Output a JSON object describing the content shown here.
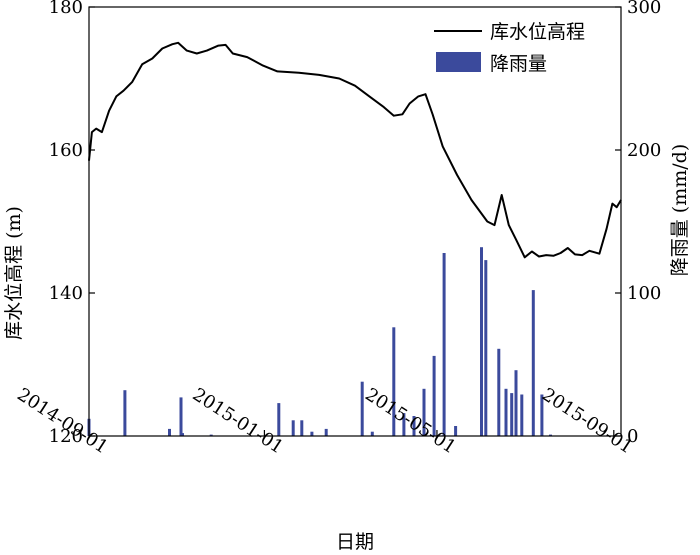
{
  "chart_data": {
    "type": "line+bar",
    "xlabel": "日期",
    "ylabel_left": "库水位高程 (m)",
    "ylabel_right": "降雨量 (mm/d)",
    "ylim_left": [
      120,
      180
    ],
    "ylim_right": [
      0,
      300
    ],
    "yticks_left": [
      "120",
      "140",
      "160",
      "180"
    ],
    "yticks_right": [
      "0",
      "100",
      "200",
      "300"
    ],
    "xlim": [
      "2014-09-01",
      "2015-09-06"
    ],
    "xticks": [
      "2014-09-01",
      "2015-01-01",
      "2015-05-01",
      "2015-09-01"
    ],
    "legend_position": "top-right",
    "series": [
      {
        "name": "库水位高程",
        "kind": "line",
        "color": "#000000",
        "points": [
          [
            "2014-09-01",
            158.5
          ],
          [
            "2014-09-03",
            162.5
          ],
          [
            "2014-09-06",
            163.0
          ],
          [
            "2014-09-10",
            162.5
          ],
          [
            "2014-09-15",
            165.5
          ],
          [
            "2014-09-20",
            167.5
          ],
          [
            "2014-09-25",
            168.3
          ],
          [
            "2014-10-01",
            169.5
          ],
          [
            "2014-10-08",
            172.0
          ],
          [
            "2014-10-15",
            172.8
          ],
          [
            "2014-10-22",
            174.2
          ],
          [
            "2014-10-29",
            174.8
          ],
          [
            "2014-11-02",
            175.0
          ],
          [
            "2014-11-08",
            173.9
          ],
          [
            "2014-11-15",
            173.5
          ],
          [
            "2014-11-22",
            173.9
          ],
          [
            "2014-11-30",
            174.6
          ],
          [
            "2014-12-05",
            174.7
          ],
          [
            "2014-12-10",
            173.5
          ],
          [
            "2014-12-20",
            173.0
          ],
          [
            "2014-12-31",
            171.8
          ],
          [
            "2015-01-10",
            171.0
          ],
          [
            "2015-01-25",
            170.8
          ],
          [
            "2015-02-08",
            170.5
          ],
          [
            "2015-02-22",
            170.0
          ],
          [
            "2015-03-05",
            169.0
          ],
          [
            "2015-03-15",
            167.5
          ],
          [
            "2015-03-25",
            166.0
          ],
          [
            "2015-04-01",
            164.8
          ],
          [
            "2015-04-07",
            165.0
          ],
          [
            "2015-04-12",
            166.5
          ],
          [
            "2015-04-18",
            167.5
          ],
          [
            "2015-04-23",
            167.8
          ],
          [
            "2015-04-28",
            165.0
          ],
          [
            "2015-05-05",
            160.5
          ],
          [
            "2015-05-15",
            156.5
          ],
          [
            "2015-05-25",
            153.0
          ],
          [
            "2015-06-05",
            150.0
          ],
          [
            "2015-06-10",
            149.5
          ],
          [
            "2015-06-15",
            153.7
          ],
          [
            "2015-06-20",
            149.5
          ],
          [
            "2015-06-25",
            147.5
          ],
          [
            "2015-07-01",
            145.0
          ],
          [
            "2015-07-06",
            145.8
          ],
          [
            "2015-07-11",
            145.1
          ],
          [
            "2015-07-16",
            145.3
          ],
          [
            "2015-07-21",
            145.2
          ],
          [
            "2015-07-26",
            145.6
          ],
          [
            "2015-07-31",
            146.3
          ],
          [
            "2015-08-05",
            145.4
          ],
          [
            "2015-08-10",
            145.3
          ],
          [
            "2015-08-15",
            145.9
          ],
          [
            "2015-08-22",
            145.5
          ],
          [
            "2015-08-27",
            149.0
          ],
          [
            "2015-08-31",
            152.5
          ],
          [
            "2015-09-03",
            152.0
          ],
          [
            "2015-09-06",
            153.0
          ]
        ]
      },
      {
        "name": "降雨量",
        "kind": "bar",
        "color": "#3b4a9c",
        "points": [
          [
            "2014-09-01",
            12
          ],
          [
            "2014-09-26",
            32
          ],
          [
            "2014-10-27",
            5
          ],
          [
            "2014-11-04",
            27
          ],
          [
            "2014-11-05",
            2
          ],
          [
            "2014-11-25",
            1
          ],
          [
            "2015-01-11",
            23
          ],
          [
            "2015-01-21",
            11
          ],
          [
            "2015-01-27",
            11
          ],
          [
            "2015-02-03",
            3
          ],
          [
            "2015-02-13",
            5
          ],
          [
            "2015-03-10",
            38
          ],
          [
            "2015-03-17",
            3
          ],
          [
            "2015-04-01",
            76
          ],
          [
            "2015-04-08",
            16
          ],
          [
            "2015-04-15",
            14
          ],
          [
            "2015-04-22",
            33
          ],
          [
            "2015-04-29",
            56
          ],
          [
            "2015-05-06",
            128
          ],
          [
            "2015-05-14",
            7
          ],
          [
            "2015-06-01",
            132
          ],
          [
            "2015-06-04",
            123
          ],
          [
            "2015-06-13",
            61
          ],
          [
            "2015-06-18",
            33
          ],
          [
            "2015-06-22",
            30
          ],
          [
            "2015-06-25",
            46
          ],
          [
            "2015-06-29",
            29
          ],
          [
            "2015-07-07",
            102
          ],
          [
            "2015-07-13",
            29
          ],
          [
            "2015-07-19",
            1
          ]
        ]
      }
    ]
  }
}
